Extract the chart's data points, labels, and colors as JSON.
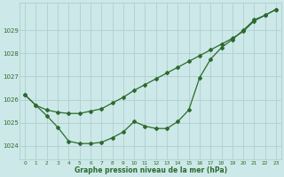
{
  "title": "Graphe pression niveau de la mer (hPa)",
  "background_color": "#cce8e8",
  "line_color": "#2d6a2d",
  "grid_color": "#b0d0d0",
  "xlim": [
    -0.5,
    23.5
  ],
  "ylim": [
    1023.4,
    1030.2
  ],
  "yticks": [
    1024,
    1025,
    1026,
    1027,
    1028,
    1029
  ],
  "xticks": [
    0,
    1,
    2,
    3,
    4,
    5,
    6,
    7,
    8,
    9,
    10,
    11,
    12,
    13,
    14,
    15,
    16,
    17,
    18,
    19,
    20,
    21,
    22,
    23
  ],
  "series1": {
    "x": [
      0,
      1,
      2,
      3,
      4,
      5,
      6,
      7,
      8,
      9,
      10,
      11,
      12,
      13,
      14,
      15,
      16,
      17,
      18,
      19,
      20,
      21,
      22,
      23
    ],
    "y": [
      1026.2,
      1025.75,
      1025.55,
      1025.45,
      1025.4,
      1025.4,
      1025.5,
      1025.6,
      1025.85,
      1026.1,
      1026.4,
      1026.65,
      1026.9,
      1027.15,
      1027.4,
      1027.65,
      1027.9,
      1028.15,
      1028.4,
      1028.65,
      1028.95,
      1029.4,
      1029.65,
      1029.9
    ]
  },
  "series2": {
    "x": [
      0,
      1,
      2,
      3,
      4,
      5,
      6,
      7,
      8,
      9,
      10,
      11,
      12,
      13,
      14,
      15,
      16,
      17,
      18,
      19,
      20,
      21,
      22,
      23
    ],
    "y": [
      1026.2,
      1025.75,
      1025.3,
      1024.8,
      1024.2,
      1024.1,
      1024.1,
      1024.15,
      1024.35,
      1024.6,
      1025.05,
      1024.85,
      1024.75,
      1024.75,
      1025.05,
      1025.55,
      1026.95,
      1027.75,
      1028.25,
      1028.6,
      1029.0,
      1029.45,
      1029.65,
      1029.9
    ]
  }
}
